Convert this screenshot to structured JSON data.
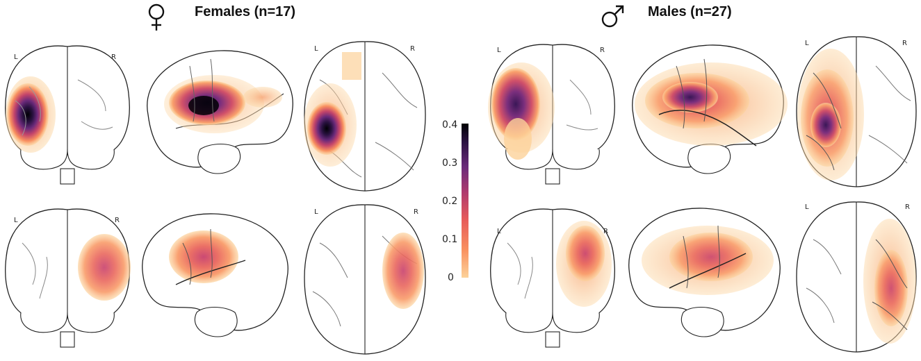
{
  "females": {
    "symbol": "♀",
    "title": "Females (n=17)"
  },
  "males": {
    "symbol": "♂",
    "title": "Males (n=27)"
  },
  "hemisphere_labels": {
    "left": "L",
    "right": "R"
  },
  "colorbar": {
    "ticks": [
      "0.4",
      "0.3",
      "0.2",
      "0.1",
      "0"
    ],
    "colormap": [
      "#fcd29a",
      "#f99160",
      "#e65a5a",
      "#b03a6e",
      "#6a2a7a",
      "#2b1242",
      "#000004"
    ]
  }
}
